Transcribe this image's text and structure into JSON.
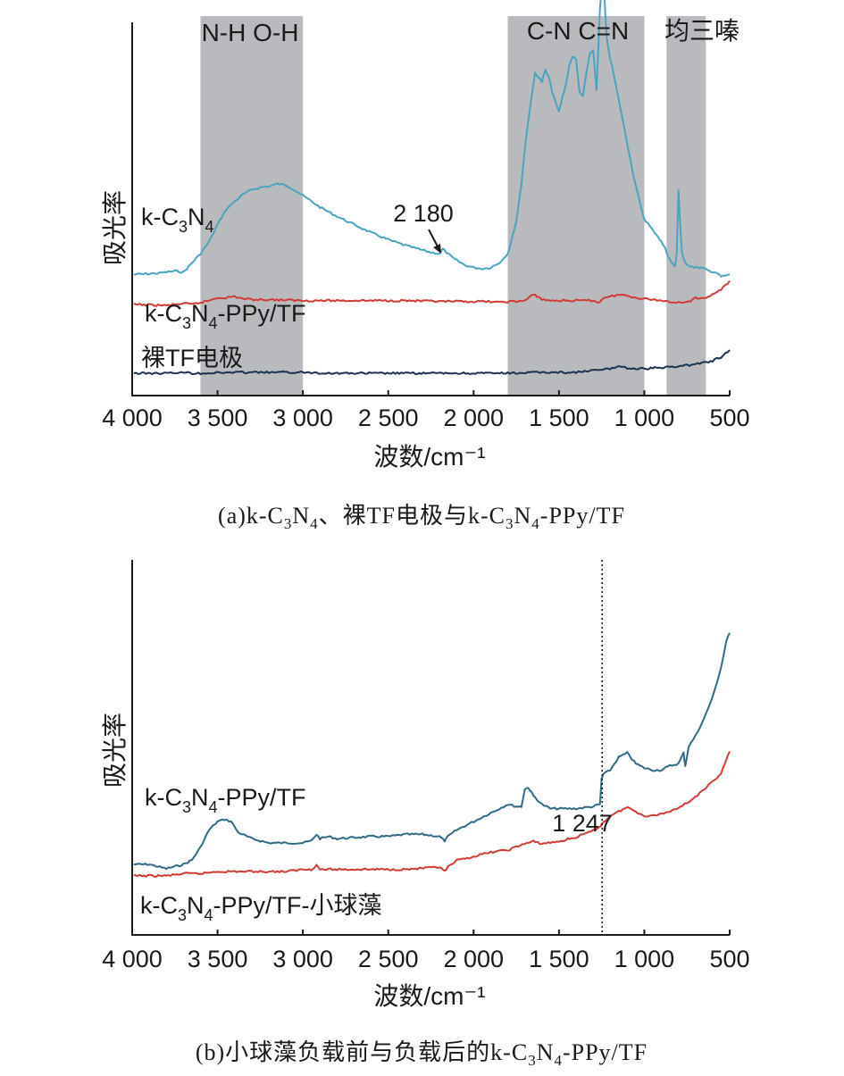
{
  "chart_data": [
    {
      "type": "line",
      "panel": "a",
      "caption": "(a)k-C3N4、裸TF电极与k-C3N4-PPy/TF",
      "caption_parts": {
        "prefix": "(a)k-C",
        "sub1": "3",
        "mid1": "N",
        "sub2": "4",
        "mid2": "、裸TF电极与k-C",
        "sub3": "3",
        "mid3": "N",
        "sub4": "4",
        "suffix": "-PPy/TF"
      },
      "xlabel": "波数/cm⁻¹",
      "ylabel": "吸光率",
      "xlim": [
        4000,
        500
      ],
      "x_reversed": true,
      "xticks": [
        4000,
        3500,
        3000,
        2500,
        2000,
        1500,
        1000,
        500
      ],
      "xtick_labels": [
        "4 000",
        "3 500",
        "3 000",
        "2 500",
        "2 000",
        "1 500",
        "1 000",
        "500"
      ],
      "yticks": "none",
      "shaded_bands": [
        {
          "from": 3600,
          "to": 3000,
          "label": "N-H  O-H",
          "color": "#b9babd"
        },
        {
          "from": 1800,
          "to": 1000,
          "label": "C-N  C=N",
          "color": "#b9babd"
        },
        {
          "from": 870,
          "to": 640,
          "label": "均三嗪",
          "color": "#b9babd"
        }
      ],
      "annotations": [
        {
          "x": 2180,
          "text": "2 180",
          "arrow": true
        }
      ],
      "series": [
        {
          "name": "k-C3N4",
          "label_parts": {
            "a": "k-C",
            "s1": "3",
            "b": "N",
            "s2": "4",
            "c": ""
          },
          "color": "#4aa3bf",
          "x": [
            3990,
            3850,
            3750,
            3700,
            3680,
            3650,
            3600,
            3550,
            3500,
            3450,
            3400,
            3350,
            3300,
            3250,
            3200,
            3150,
            3100,
            3050,
            3000,
            2900,
            2800,
            2700,
            2600,
            2500,
            2400,
            2300,
            2250,
            2200,
            2180,
            2160,
            2120,
            2050,
            2000,
            1950,
            1900,
            1850,
            1800,
            1780,
            1750,
            1720,
            1700,
            1680,
            1660,
            1640,
            1620,
            1600,
            1580,
            1560,
            1540,
            1520,
            1500,
            1480,
            1460,
            1440,
            1420,
            1400,
            1380,
            1360,
            1340,
            1320,
            1300,
            1280,
            1260,
            1250,
            1240,
            1230,
            1220,
            1200,
            1180,
            1160,
            1140,
            1120,
            1100,
            1080,
            1060,
            1040,
            1020,
            1000,
            980,
            950,
            920,
            900,
            880,
            860,
            840,
            820,
            810,
            800,
            790,
            780,
            770,
            760,
            740,
            720,
            700,
            680,
            650,
            620,
            580,
            550,
            500
          ],
          "y": [
            0.02,
            0.03,
            0.05,
            0.04,
            0.07,
            0.12,
            0.2,
            0.3,
            0.45,
            0.58,
            0.65,
            0.71,
            0.75,
            0.77,
            0.78,
            0.8,
            0.79,
            0.75,
            0.7,
            0.6,
            0.52,
            0.45,
            0.38,
            0.32,
            0.27,
            0.23,
            0.21,
            0.2,
            0.24,
            0.21,
            0.16,
            0.1,
            0.08,
            0.07,
            0.08,
            0.12,
            0.2,
            0.3,
            0.48,
            0.8,
            1.1,
            1.35,
            1.55,
            1.76,
            1.72,
            1.68,
            1.78,
            1.72,
            1.6,
            1.5,
            1.42,
            1.55,
            1.65,
            1.82,
            1.9,
            1.87,
            1.6,
            1.55,
            1.75,
            1.92,
            1.95,
            1.6,
            2.3,
            2.5,
            2.6,
            2.3,
            2.05,
            1.88,
            1.75,
            1.6,
            1.45,
            1.3,
            1.15,
            1.0,
            0.85,
            0.72,
            0.6,
            0.5,
            0.46,
            0.4,
            0.35,
            0.3,
            0.25,
            0.18,
            0.12,
            0.09,
            0.2,
            0.75,
            0.45,
            0.22,
            0.15,
            0.12,
            0.1,
            0.09,
            0.08,
            0.08,
            0.07,
            0.05,
            0.04,
            0.0,
            0.02
          ]
        },
        {
          "name": "k-C3N4-PPy/TF",
          "label_parts": {
            "a": "k-C",
            "s1": "3",
            "b": "N",
            "s2": "4",
            "c": "-PPy/TF"
          },
          "color": "#d23a35",
          "x": [
            3990,
            3800,
            3700,
            3650,
            3600,
            3550,
            3500,
            3450,
            3400,
            3350,
            3300,
            3200,
            3000,
            2800,
            2600,
            2400,
            2200,
            2000,
            1900,
            1850,
            1800,
            1750,
            1700,
            1650,
            1620,
            1600,
            1550,
            1450,
            1350,
            1300,
            1260,
            1250,
            1240,
            1200,
            1150,
            1100,
            1050,
            1000,
            950,
            900,
            850,
            800,
            750,
            720,
            700,
            680,
            650,
            600,
            550,
            500
          ],
          "y": [
            0.4,
            0.39,
            0.41,
            0.4,
            0.42,
            0.44,
            0.47,
            0.47,
            0.48,
            0.46,
            0.45,
            0.45,
            0.44,
            0.44,
            0.44,
            0.44,
            0.43,
            0.43,
            0.43,
            0.42,
            0.43,
            0.43,
            0.44,
            0.5,
            0.48,
            0.45,
            0.44,
            0.44,
            0.44,
            0.44,
            0.42,
            0.45,
            0.47,
            0.48,
            0.5,
            0.49,
            0.47,
            0.46,
            0.45,
            0.44,
            0.43,
            0.42,
            0.43,
            0.44,
            0.47,
            0.45,
            0.47,
            0.5,
            0.55,
            0.64
          ]
        },
        {
          "name": "裸TF电极",
          "label_parts": {
            "a": "裸TF电极",
            "s1": "",
            "b": "",
            "s2": "",
            "c": ""
          },
          "color": "#1b3350",
          "x": [
            3990,
            3800,
            3700,
            3650,
            3600,
            3400,
            3200,
            3000,
            2800,
            2600,
            2400,
            2200,
            2000,
            1800,
            1600,
            1400,
            1300,
            1200,
            1150,
            1100,
            1050,
            1000,
            950,
            900,
            800,
            700,
            600,
            550,
            500
          ],
          "y": [
            0.02,
            0.02,
            0.03,
            0.02,
            0.02,
            0.03,
            0.03,
            0.03,
            0.02,
            0.02,
            0.02,
            0.02,
            0.02,
            0.02,
            0.03,
            0.03,
            0.05,
            0.07,
            0.1,
            0.08,
            0.07,
            0.07,
            0.08,
            0.08,
            0.1,
            0.12,
            0.16,
            0.2,
            0.28
          ]
        }
      ]
    },
    {
      "type": "line",
      "panel": "b",
      "caption": "(b)小球藻负载前与负载后的k-C3N4-PPy/TF",
      "caption_parts": {
        "prefix": "(b)小球藻负载前与负载后的k-C",
        "sub1": "3",
        "mid1": "N",
        "sub2": "4",
        "suffix": "-PPy/TF"
      },
      "xlabel": "波数/cm⁻¹",
      "ylabel": "吸光率",
      "xlim": [
        4000,
        500
      ],
      "x_reversed": true,
      "xticks": [
        4000,
        3500,
        3000,
        2500,
        2000,
        1500,
        1000,
        500
      ],
      "xtick_labels": [
        "4 000",
        "3 500",
        "3 000",
        "2 500",
        "2 000",
        "1 500",
        "1 000",
        "500"
      ],
      "yticks": "none",
      "vline": {
        "x": 1247,
        "style": "dotted"
      },
      "annotations": [
        {
          "x": 1247,
          "text": "1 247",
          "arrow": false
        }
      ],
      "series": [
        {
          "name": "k-C3N4-PPy/TF",
          "label_parts": {
            "a": "k-C",
            "s1": "3",
            "b": "N",
            "s2": "4",
            "c": "-PPy/TF"
          },
          "color": "#2f6b84",
          "x": [
            3990,
            3900,
            3800,
            3700,
            3650,
            3600,
            3550,
            3500,
            3460,
            3420,
            3380,
            3300,
            3200,
            3100,
            3000,
            2950,
            2920,
            2900,
            2850,
            2800,
            2600,
            2500,
            2400,
            2300,
            2200,
            2170,
            2150,
            2100,
            2000,
            1900,
            1800,
            1750,
            1720,
            1700,
            1680,
            1650,
            1600,
            1550,
            1500,
            1400,
            1300,
            1260,
            1250,
            1240,
            1200,
            1150,
            1100,
            1080,
            1050,
            1000,
            950,
            900,
            850,
            800,
            770,
            760,
            740,
            700,
            650,
            600,
            550,
            520,
            500
          ],
          "y": [
            0.2,
            0.2,
            0.18,
            0.2,
            0.22,
            0.28,
            0.36,
            0.4,
            0.41,
            0.4,
            0.35,
            0.32,
            0.3,
            0.3,
            0.3,
            0.31,
            0.34,
            0.32,
            0.33,
            0.32,
            0.33,
            0.33,
            0.34,
            0.34,
            0.33,
            0.31,
            0.33,
            0.36,
            0.4,
            0.44,
            0.48,
            0.47,
            0.47,
            0.55,
            0.56,
            0.52,
            0.48,
            0.46,
            0.46,
            0.46,
            0.47,
            0.48,
            0.6,
            0.62,
            0.64,
            0.7,
            0.72,
            0.7,
            0.67,
            0.65,
            0.64,
            0.64,
            0.66,
            0.67,
            0.72,
            0.66,
            0.75,
            0.8,
            0.88,
            0.98,
            1.12,
            1.24,
            1.28
          ]
        },
        {
          "name": "k-C3N4-PPy/TF-小球藻",
          "label_parts": {
            "a": "k-C",
            "s1": "3",
            "b": "N",
            "s2": "4",
            "c": "-PPy/TF-小球藻"
          },
          "color": "#d23a35",
          "x": [
            3990,
            3800,
            3700,
            3600,
            3500,
            3400,
            3300,
            3200,
            3100,
            3000,
            2950,
            2920,
            2900,
            2850,
            2800,
            2600,
            2400,
            2200,
            2170,
            2150,
            2100,
            2000,
            1900,
            1800,
            1700,
            1650,
            1600,
            1500,
            1400,
            1300,
            1260,
            1250,
            1200,
            1150,
            1100,
            1050,
            1000,
            950,
            900,
            850,
            800,
            750,
            700,
            650,
            600,
            550,
            520,
            500
          ],
          "y": [
            0.08,
            0.08,
            0.09,
            0.09,
            0.1,
            0.1,
            0.1,
            0.1,
            0.1,
            0.11,
            0.11,
            0.13,
            0.11,
            0.11,
            0.11,
            0.11,
            0.11,
            0.12,
            0.1,
            0.12,
            0.15,
            0.17,
            0.19,
            0.2,
            0.23,
            0.24,
            0.23,
            0.24,
            0.26,
            0.29,
            0.31,
            0.32,
            0.36,
            0.38,
            0.4,
            0.38,
            0.36,
            0.36,
            0.37,
            0.38,
            0.4,
            0.42,
            0.45,
            0.48,
            0.52,
            0.56,
            0.62,
            0.66
          ]
        }
      ]
    }
  ]
}
